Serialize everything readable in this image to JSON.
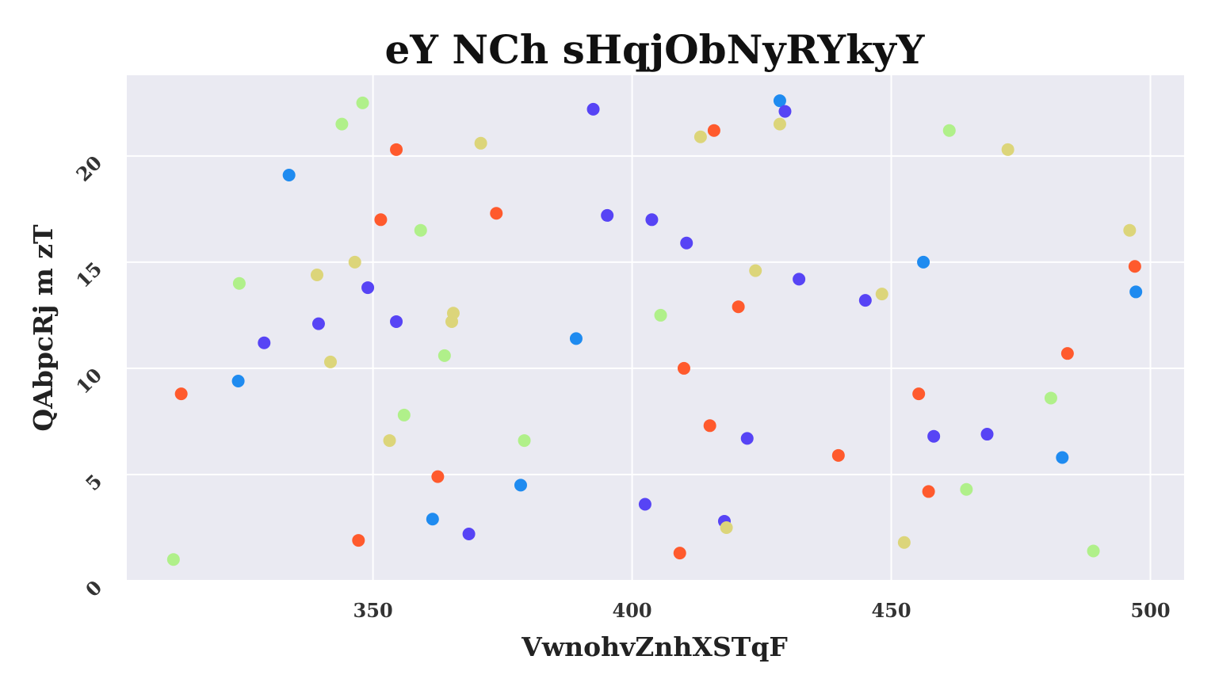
{
  "chart_data": {
    "type": "scatter",
    "title": "eY  NCh sHqjObNyRYkyY",
    "xlabel": "VwnohvZnhXSTqF",
    "ylabel": "QAbpcRj m zT",
    "xlim": [
      302.5,
      506.5
    ],
    "ylim": [
      0,
      23.8
    ],
    "xticks": [
      350,
      400,
      450,
      500
    ],
    "yticks": [
      0,
      5,
      10,
      15,
      20
    ],
    "grid": true,
    "legend": "none",
    "colors": {
      "background": "#eaeaf2",
      "red": "#ff5a2d",
      "blue": "#1f8bf0",
      "purple": "#5744f5",
      "lightgreen": "#b0f08a",
      "olive": "#dcd57a"
    },
    "series": [
      {
        "color": "#ff5a2d",
        "points": [
          [
            313.0,
            8.8
          ],
          [
            347.2,
            1.9
          ],
          [
            351.5,
            17.0
          ],
          [
            354.5,
            20.3
          ],
          [
            362.5,
            4.9
          ],
          [
            373.8,
            17.3
          ],
          [
            409.2,
            1.3
          ],
          [
            410.0,
            10.0
          ],
          [
            415.0,
            7.3
          ],
          [
            415.8,
            21.2
          ],
          [
            420.5,
            12.9
          ],
          [
            439.8,
            5.9
          ],
          [
            455.3,
            8.8
          ],
          [
            457.2,
            4.2
          ],
          [
            484.0,
            10.7
          ],
          [
            497.0,
            14.8
          ]
        ]
      },
      {
        "color": "#1f8bf0",
        "points": [
          [
            324.0,
            9.4
          ],
          [
            333.8,
            19.1
          ],
          [
            361.5,
            2.9
          ],
          [
            378.5,
            4.5
          ],
          [
            389.2,
            11.4
          ],
          [
            428.5,
            22.6
          ],
          [
            456.2,
            15.0
          ],
          [
            483.0,
            5.8
          ],
          [
            497.2,
            13.6
          ]
        ]
      },
      {
        "color": "#5744f5",
        "points": [
          [
            329.0,
            11.2
          ],
          [
            339.5,
            12.1
          ],
          [
            349.0,
            13.8
          ],
          [
            354.5,
            12.2
          ],
          [
            368.5,
            2.2
          ],
          [
            392.5,
            22.2
          ],
          [
            395.2,
            17.2
          ],
          [
            402.5,
            3.6
          ],
          [
            403.8,
            17.0
          ],
          [
            410.5,
            15.9
          ],
          [
            417.8,
            2.8
          ],
          [
            422.2,
            6.7
          ],
          [
            429.5,
            22.1
          ],
          [
            432.2,
            14.2
          ],
          [
            445.0,
            13.2
          ],
          [
            458.2,
            6.8
          ],
          [
            468.5,
            6.9
          ]
        ]
      },
      {
        "color": "#b0f08a",
        "points": [
          [
            311.5,
            1.0
          ],
          [
            324.2,
            14.0
          ],
          [
            344.0,
            21.5
          ],
          [
            348.0,
            22.5
          ],
          [
            356.0,
            7.8
          ],
          [
            359.2,
            16.5
          ],
          [
            363.8,
            10.6
          ],
          [
            379.2,
            6.6
          ],
          [
            405.5,
            12.5
          ],
          [
            461.2,
            21.2
          ],
          [
            464.5,
            4.3
          ],
          [
            480.8,
            8.6
          ],
          [
            489.0,
            1.4
          ]
        ]
      },
      {
        "color": "#dcd57a",
        "points": [
          [
            339.2,
            14.4
          ],
          [
            341.8,
            10.3
          ],
          [
            346.5,
            15.0
          ],
          [
            353.2,
            6.6
          ],
          [
            365.2,
            12.2
          ],
          [
            365.5,
            12.6
          ],
          [
            370.8,
            20.6
          ],
          [
            413.2,
            20.9
          ],
          [
            418.2,
            2.5
          ],
          [
            423.8,
            14.6
          ],
          [
            428.5,
            21.5
          ],
          [
            448.2,
            13.5
          ],
          [
            452.5,
            1.8
          ],
          [
            472.5,
            20.3
          ],
          [
            496.0,
            16.5
          ]
        ]
      }
    ]
  }
}
